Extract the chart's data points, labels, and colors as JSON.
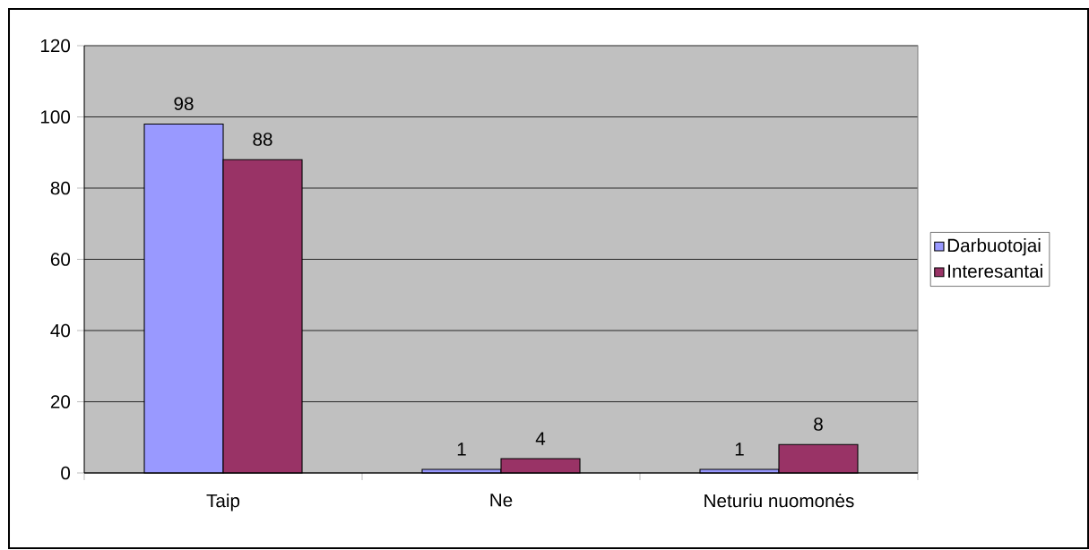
{
  "chart_data": {
    "type": "bar",
    "categories": [
      "Taip",
      "Ne",
      "Neturiu nuomonės"
    ],
    "series": [
      {
        "name": "Darbuotojai",
        "color": "#9999ff",
        "values": [
          98,
          1,
          1
        ]
      },
      {
        "name": "Interesantai",
        "color": "#993366",
        "values": [
          88,
          4,
          8
        ]
      }
    ],
    "ylim": [
      0,
      120
    ],
    "yticks": [
      0,
      20,
      40,
      60,
      80,
      100,
      120
    ],
    "grid": "y",
    "legend": "right",
    "data_labels": true
  }
}
